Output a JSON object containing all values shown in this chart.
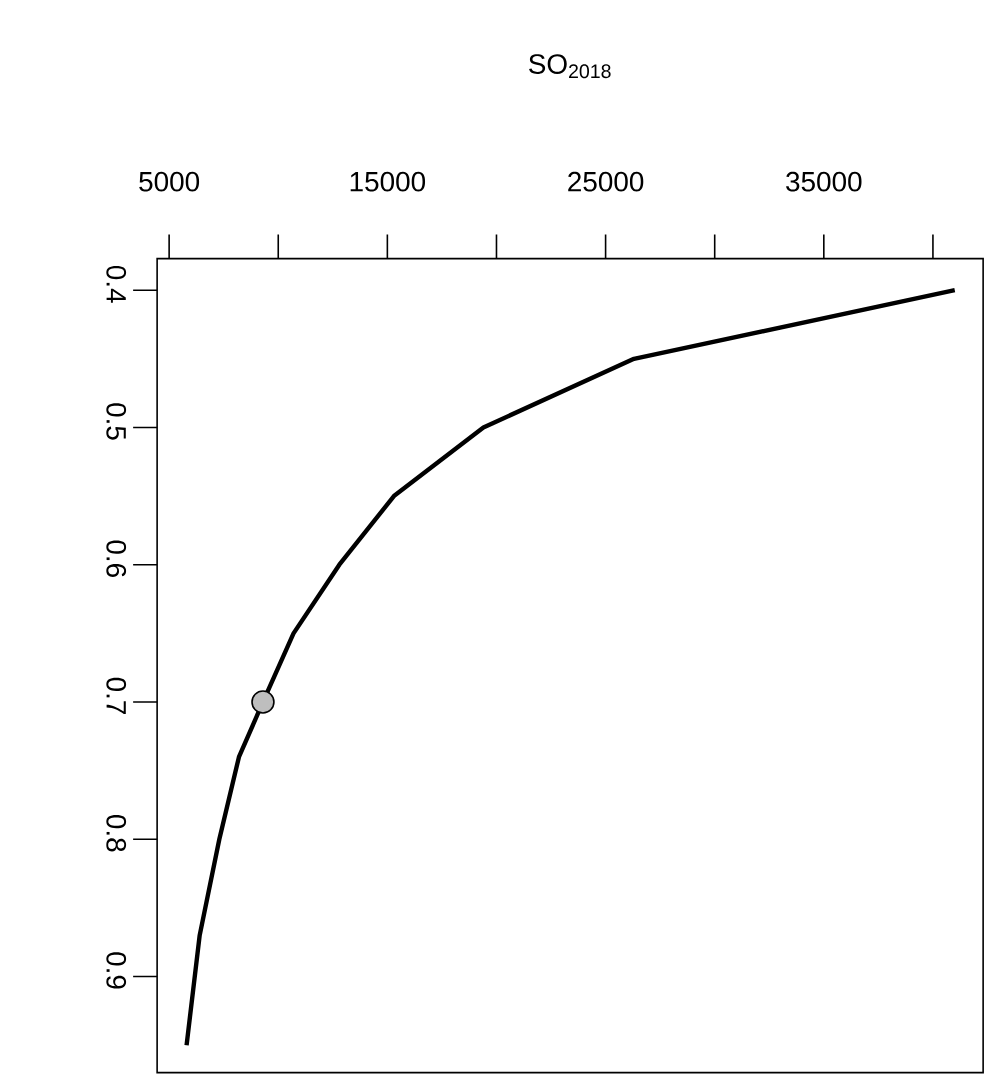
{
  "chart_data": {
    "type": "line",
    "xlabel": "SO$_{2018}$",
    "xlim": [
      4450,
      42300
    ],
    "ylim": [
      0.97,
      0.377
    ],
    "xticks": [
      5000,
      {
        "value": 10000,
        "label": null
      },
      15000,
      {
        "value": 20000,
        "label": null
      },
      25000,
      {
        "value": 30000,
        "label": null
      },
      35000,
      {
        "value": 40000,
        "label": null
      }
    ],
    "yticks": [
      0.4,
      0.5,
      0.6,
      0.7,
      0.8,
      0.9
    ],
    "series": [
      {
        "color": "#000000",
        "marker": "none",
        "x": [
          5800,
          6400,
          7300,
          8200,
          9300,
          10700,
          12800,
          15300,
          19400,
          26300,
          41000
        ],
        "values": [
          0.95,
          0.87,
          0.8,
          0.74,
          0.7,
          0.65,
          0.6,
          0.55,
          0.5,
          0.45,
          0.4
        ]
      },
      {
        "type": "scatter",
        "color": "#bebebe",
        "marker": "circle",
        "x": [
          9300
        ],
        "values": [
          0.7
        ]
      }
    ]
  }
}
